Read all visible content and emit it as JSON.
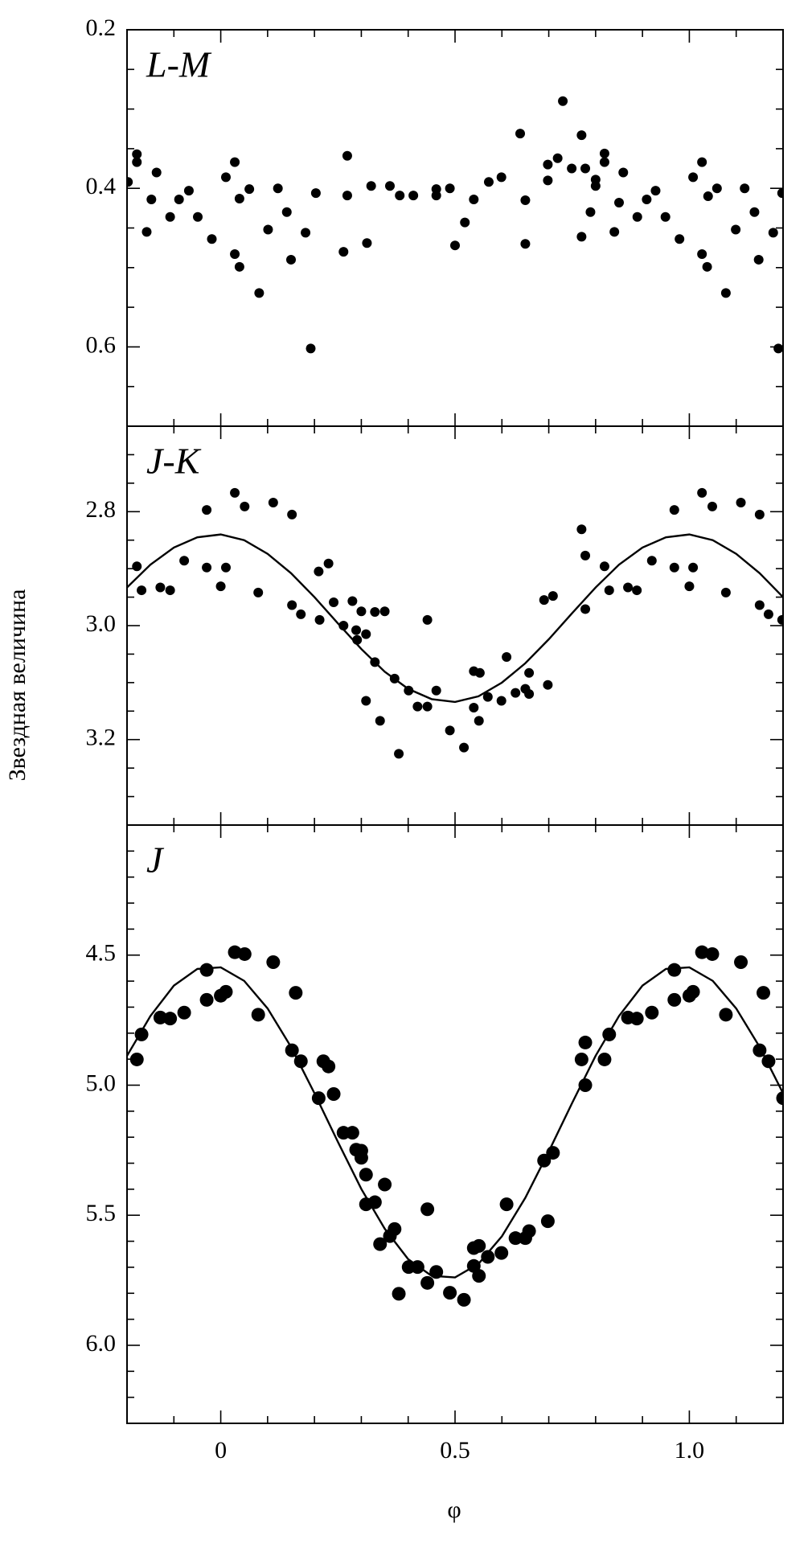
{
  "xlabel": "φ",
  "ylabel": "Звездная величина",
  "chart_data": [
    {
      "type": "scatter",
      "title": "L-M",
      "invert_y": true,
      "marker_radius": 6,
      "color": "#000000",
      "xlim": [
        -0.2,
        1.2
      ],
      "xticks": [
        0,
        0.5,
        {
          "value": 1,
          "label": "1.0"
        }
      ],
      "xminor": [
        -0.1,
        0.1,
        0.2,
        0.3,
        0.4,
        0.6,
        0.7,
        0.8,
        0.9,
        1.1
      ],
      "ylim": [
        0.2,
        0.7
      ],
      "yticks": [
        0.2,
        0.4,
        0.6
      ],
      "yminor": [
        0.25,
        0.3,
        0.35,
        0.45,
        0.5,
        0.55,
        0.65
      ],
      "x": [
        -0.198,
        -0.179,
        -0.179,
        -0.158,
        -0.148,
        -0.137,
        -0.108,
        -0.089,
        -0.068,
        -0.049,
        -0.019,
        0.011,
        0.03,
        0.03,
        0.04,
        0.04,
        0.061,
        0.082,
        0.101,
        0.122,
        0.141,
        0.15,
        0.181,
        0.192,
        0.203,
        0.262,
        0.27,
        0.27,
        0.312,
        0.321,
        0.361,
        0.382,
        0.411,
        0.46,
        0.46,
        0.489,
        0.5,
        0.521,
        0.54,
        0.572,
        0.599,
        0.639,
        0.65,
        0.65,
        0.698,
        0.698,
        0.719,
        0.73,
        0.749,
        0.77,
        0.77,
        0.778,
        0.789,
        0.8,
        0.8,
        0.819,
        0.819,
        0.84,
        0.85,
        0.859,
        0.889,
        0.909,
        0.928,
        0.949,
        0.979,
        1.008,
        1.027,
        1.027,
        1.038,
        1.04,
        1.059,
        1.078,
        1.099,
        1.118,
        1.139,
        1.148,
        1.179,
        1.19,
        1.198
      ],
      "values": [
        0.392,
        0.357,
        0.367,
        0.455,
        0.414,
        0.38,
        0.436,
        0.414,
        0.403,
        0.436,
        0.464,
        0.386,
        0.367,
        0.483,
        0.413,
        0.499,
        0.401,
        0.532,
        0.452,
        0.4,
        0.43,
        0.49,
        0.456,
        0.602,
        0.406,
        0.48,
        0.359,
        0.409,
        0.469,
        0.397,
        0.397,
        0.409,
        0.409,
        0.401,
        0.409,
        0.4,
        0.472,
        0.443,
        0.414,
        0.392,
        0.386,
        0.331,
        0.415,
        0.47,
        0.39,
        0.37,
        0.362,
        0.29,
        0.375,
        0.333,
        0.461,
        0.375,
        0.43,
        0.389,
        0.397,
        0.356,
        0.367,
        0.455,
        0.418,
        0.38,
        0.436,
        0.414,
        0.403,
        0.436,
        0.464,
        0.386,
        0.367,
        0.483,
        0.499,
        0.41,
        0.4,
        0.532,
        0.452,
        0.4,
        0.43,
        0.49,
        0.456,
        0.602,
        0.406
      ]
    },
    {
      "type": "scatter",
      "title": "J-K",
      "invert_y": true,
      "marker_radius": 6,
      "color": "#000000",
      "xlim": [
        -0.2,
        1.2
      ],
      "xticks": [
        0,
        0.5,
        {
          "value": 1,
          "label": "1.0"
        }
      ],
      "xminor": [
        -0.1,
        0.1,
        0.2,
        0.3,
        0.4,
        0.6,
        0.7,
        0.8,
        0.9,
        1.1
      ],
      "ylim": [
        2.65,
        3.35
      ],
      "yticks": [
        2.8,
        {
          "value": 3,
          "label": "3.0"
        },
        3.2
      ],
      "yminor": [
        2.7,
        2.75,
        2.85,
        2.9,
        2.95,
        3.05,
        3.1,
        3.15,
        3.25,
        3.3
      ],
      "x": [
        -0.179,
        -0.169,
        -0.129,
        -0.108,
        -0.078,
        -0.03,
        -0.03,
        0,
        0.011,
        0.03,
        0.051,
        0.08,
        0.112,
        0.152,
        0.152,
        0.171,
        0.209,
        0.211,
        0.23,
        0.241,
        0.262,
        0.281,
        0.289,
        0.291,
        0.3,
        0.31,
        0.31,
        0.329,
        0.329,
        0.34,
        0.35,
        0.371,
        0.38,
        0.401,
        0.42,
        0.441,
        0.441,
        0.46,
        0.489,
        0.519,
        0.54,
        0.54,
        0.551,
        0.553,
        0.57,
        0.599,
        0.61,
        0.629,
        0.65,
        0.658,
        0.658,
        0.69,
        0.698,
        0.709,
        0.77,
        0.778,
        0.778,
        0.819,
        0.829,
        0.869,
        0.888,
        0.92,
        0.968,
        0.968,
        1.0,
        1.008,
        1.027,
        1.049,
        1.078,
        1.11,
        1.15,
        1.15,
        1.169,
        1.198
      ],
      "values": [
        2.896,
        2.938,
        2.933,
        2.938,
        2.886,
        2.797,
        2.898,
        2.931,
        2.898,
        2.767,
        2.791,
        2.942,
        2.784,
        2.805,
        2.964,
        2.98,
        2.905,
        2.99,
        2.891,
        2.959,
        3.0,
        2.957,
        3.008,
        3.025,
        2.975,
        3.015,
        3.132,
        2.976,
        3.064,
        3.167,
        2.975,
        3.093,
        3.225,
        3.114,
        3.142,
        3.142,
        2.99,
        3.114,
        3.184,
        3.214,
        3.08,
        3.144,
        3.167,
        3.083,
        3.125,
        3.132,
        3.055,
        3.118,
        3.111,
        3.12,
        3.083,
        2.955,
        3.104,
        2.948,
        2.831,
        2.877,
        2.971,
        2.896,
        2.938,
        2.933,
        2.938,
        2.886,
        2.797,
        2.898,
        2.931,
        2.898,
        2.767,
        2.791,
        2.942,
        2.784,
        2.805,
        2.964,
        2.98,
        2.99
      ],
      "fit": {
        "x": [
          -0.2,
          -0.15,
          -0.1,
          -0.05,
          0,
          0.05,
          0.1,
          0.15,
          0.2,
          0.25,
          0.3,
          0.35,
          0.4,
          0.45,
          0.5,
          0.55,
          0.6,
          0.65,
          0.7,
          0.75,
          0.8,
          0.85,
          0.9,
          0.95,
          1.0,
          1.05,
          1.1,
          1.15,
          1.2
        ],
        "values": [
          2.933,
          2.893,
          2.863,
          2.845,
          2.84,
          2.85,
          2.874,
          2.908,
          2.95,
          2.996,
          3.041,
          3.081,
          3.111,
          3.129,
          3.134,
          3.124,
          3.1,
          3.066,
          3.024,
          2.978,
          2.933,
          2.893,
          2.863,
          2.845,
          2.84,
          2.85,
          2.874,
          2.908,
          2.95
        ]
      }
    },
    {
      "type": "scatter",
      "title": "J",
      "invert_y": true,
      "marker_radius": 8.5,
      "color": "#000000",
      "xlim": [
        -0.2,
        1.2
      ],
      "xticks": [
        0,
        0.5,
        {
          "value": 1,
          "label": "1.0"
        }
      ],
      "xminor": [
        -0.1,
        0.1,
        0.2,
        0.3,
        0.4,
        0.6,
        0.7,
        0.8,
        0.9,
        1.1
      ],
      "ylim": [
        4.0,
        6.3
      ],
      "yticks": [
        4.5,
        {
          "value": 5,
          "label": "5.0"
        },
        5.5,
        {
          "value": 6,
          "label": "6.0"
        }
      ],
      "yminor": [
        4.1,
        4.2,
        4.3,
        4.4,
        4.6,
        4.7,
        4.8,
        4.9,
        5.1,
        5.2,
        5.3,
        5.4,
        5.6,
        5.7,
        5.8,
        5.9,
        6.1,
        6.2
      ],
      "x": [
        -0.179,
        -0.169,
        -0.129,
        -0.108,
        -0.078,
        -0.03,
        -0.03,
        0,
        0.011,
        0.03,
        0.051,
        0.08,
        0.112,
        0.152,
        0.16,
        0.171,
        0.209,
        0.219,
        0.23,
        0.241,
        0.262,
        0.281,
        0.289,
        0.3,
        0.3,
        0.31,
        0.31,
        0.329,
        0.34,
        0.35,
        0.361,
        0.371,
        0.38,
        0.401,
        0.42,
        0.441,
        0.441,
        0.46,
        0.489,
        0.519,
        0.54,
        0.54,
        0.551,
        0.551,
        0.57,
        0.599,
        0.61,
        0.629,
        0.65,
        0.658,
        0.69,
        0.698,
        0.709,
        0.77,
        0.778,
        0.778,
        0.819,
        0.829,
        0.869,
        0.888,
        0.92,
        0.968,
        0.968,
        1.0,
        1.008,
        1.027,
        1.049,
        1.078,
        1.11,
        1.15,
        1.158,
        1.169,
        1.2
      ],
      "values": [
        4.901,
        4.805,
        4.74,
        4.744,
        4.721,
        4.557,
        4.672,
        4.656,
        4.641,
        4.489,
        4.496,
        4.729,
        4.527,
        4.866,
        4.645,
        4.908,
        5.05,
        4.908,
        4.928,
        5.034,
        5.183,
        5.183,
        5.248,
        5.279,
        5.252,
        5.344,
        5.458,
        5.45,
        5.611,
        5.382,
        5.58,
        5.553,
        5.802,
        5.699,
        5.699,
        5.76,
        5.477,
        5.718,
        5.798,
        5.825,
        5.695,
        5.626,
        5.733,
        5.618,
        5.66,
        5.645,
        5.458,
        5.588,
        5.588,
        5.561,
        5.29,
        5.523,
        5.26,
        4.901,
        4.836,
        5,
        4.901,
        4.805,
        4.74,
        4.744,
        4.721,
        4.557,
        4.672,
        4.656,
        4.641,
        4.489,
        4.496,
        4.729,
        4.527,
        4.866,
        4.645,
        4.908,
        5.05
      ],
      "fit": {
        "x": [
          -0.2,
          -0.15,
          -0.1,
          -0.05,
          0,
          0.05,
          0.1,
          0.15,
          0.2,
          0.25,
          0.3,
          0.35,
          0.4,
          0.45,
          0.5,
          0.55,
          0.6,
          0.65,
          0.7,
          0.75,
          0.8,
          0.85,
          0.9,
          0.95,
          1.0,
          1.05,
          1.1,
          1.15,
          1.2
        ],
        "values": [
          4.887,
          4.734,
          4.617,
          4.553,
          4.547,
          4.599,
          4.705,
          4.853,
          5.031,
          5.218,
          5.399,
          5.552,
          5.669,
          5.733,
          5.739,
          5.687,
          5.581,
          5.433,
          5.255,
          5.068,
          4.887,
          4.734,
          4.617,
          4.553,
          4.547,
          4.599,
          4.705,
          4.853,
          5.031
        ]
      }
    }
  ]
}
